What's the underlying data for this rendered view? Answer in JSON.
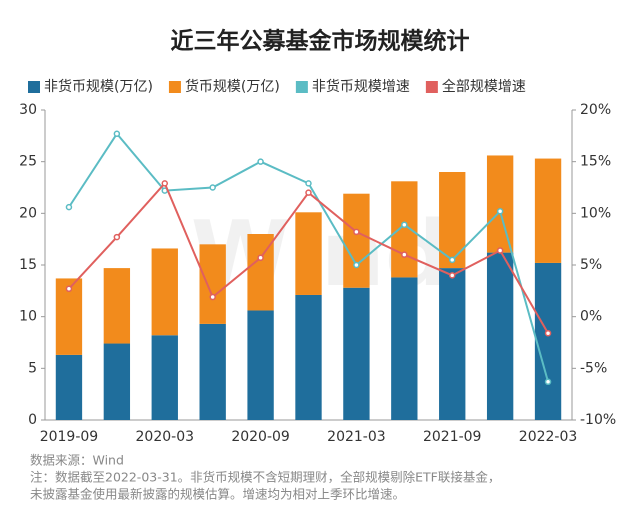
{
  "chart_data": {
    "type": "bar-line",
    "title": "近三年公募基金市场规模统计",
    "watermark": "Wind",
    "categories": [
      "2019-09",
      null,
      "2020-03",
      null,
      "2020-09",
      null,
      "2021-03",
      null,
      "2021-09",
      null,
      "2022-03"
    ],
    "series": [
      {
        "name": "非货币规模(万亿)",
        "type": "bar",
        "color": "#1f6e9c",
        "values": [
          6.3,
          7.4,
          8.2,
          9.3,
          10.6,
          12.1,
          12.8,
          13.8,
          14.7,
          16.2,
          15.2
        ]
      },
      {
        "name": "货币规模(万亿)",
        "type": "bar",
        "color": "#f28b1c",
        "values": [
          7.4,
          7.3,
          8.4,
          7.7,
          7.4,
          8.0,
          9.1,
          9.3,
          9.3,
          9.4,
          10.1
        ]
      },
      {
        "name": "非货币规模增速",
        "type": "line",
        "axis": "y2",
        "color": "#5bbcc4",
        "values": [
          10.6,
          17.7,
          12.2,
          12.5,
          15.0,
          12.9,
          5.0,
          8.9,
          5.5,
          10.2,
          -6.3
        ]
      },
      {
        "name": "全部规模增速",
        "type": "line",
        "axis": "y2",
        "color": "#e0605e",
        "values": [
          2.7,
          7.7,
          12.9,
          1.9,
          5.7,
          12.0,
          8.2,
          6.0,
          4.0,
          6.4,
          -1.6
        ]
      }
    ],
    "ylim": [
      0,
      30
    ],
    "yticks": [
      0,
      5,
      10,
      15,
      20,
      25,
      30
    ],
    "y2lim": [
      -10,
      20
    ],
    "y2ticks": [
      {
        "value": -10,
        "label": "-10%"
      },
      {
        "value": -5,
        "label": "-5%"
      },
      {
        "value": 0,
        "label": "0%"
      },
      {
        "value": 5,
        "label": "5%"
      },
      {
        "value": 10,
        "label": "10%"
      },
      {
        "value": 15,
        "label": "15%"
      },
      {
        "value": 20,
        "label": "20%"
      }
    ],
    "notes": [
      "数据来源：Wind",
      "注：数据截至2022-03-31。非货币规模不含短期理财，全部规模剔除ETF联接基金，",
      "未披露基金使用最新披露的规模估算。增速均为相对上季环比增速。"
    ]
  }
}
